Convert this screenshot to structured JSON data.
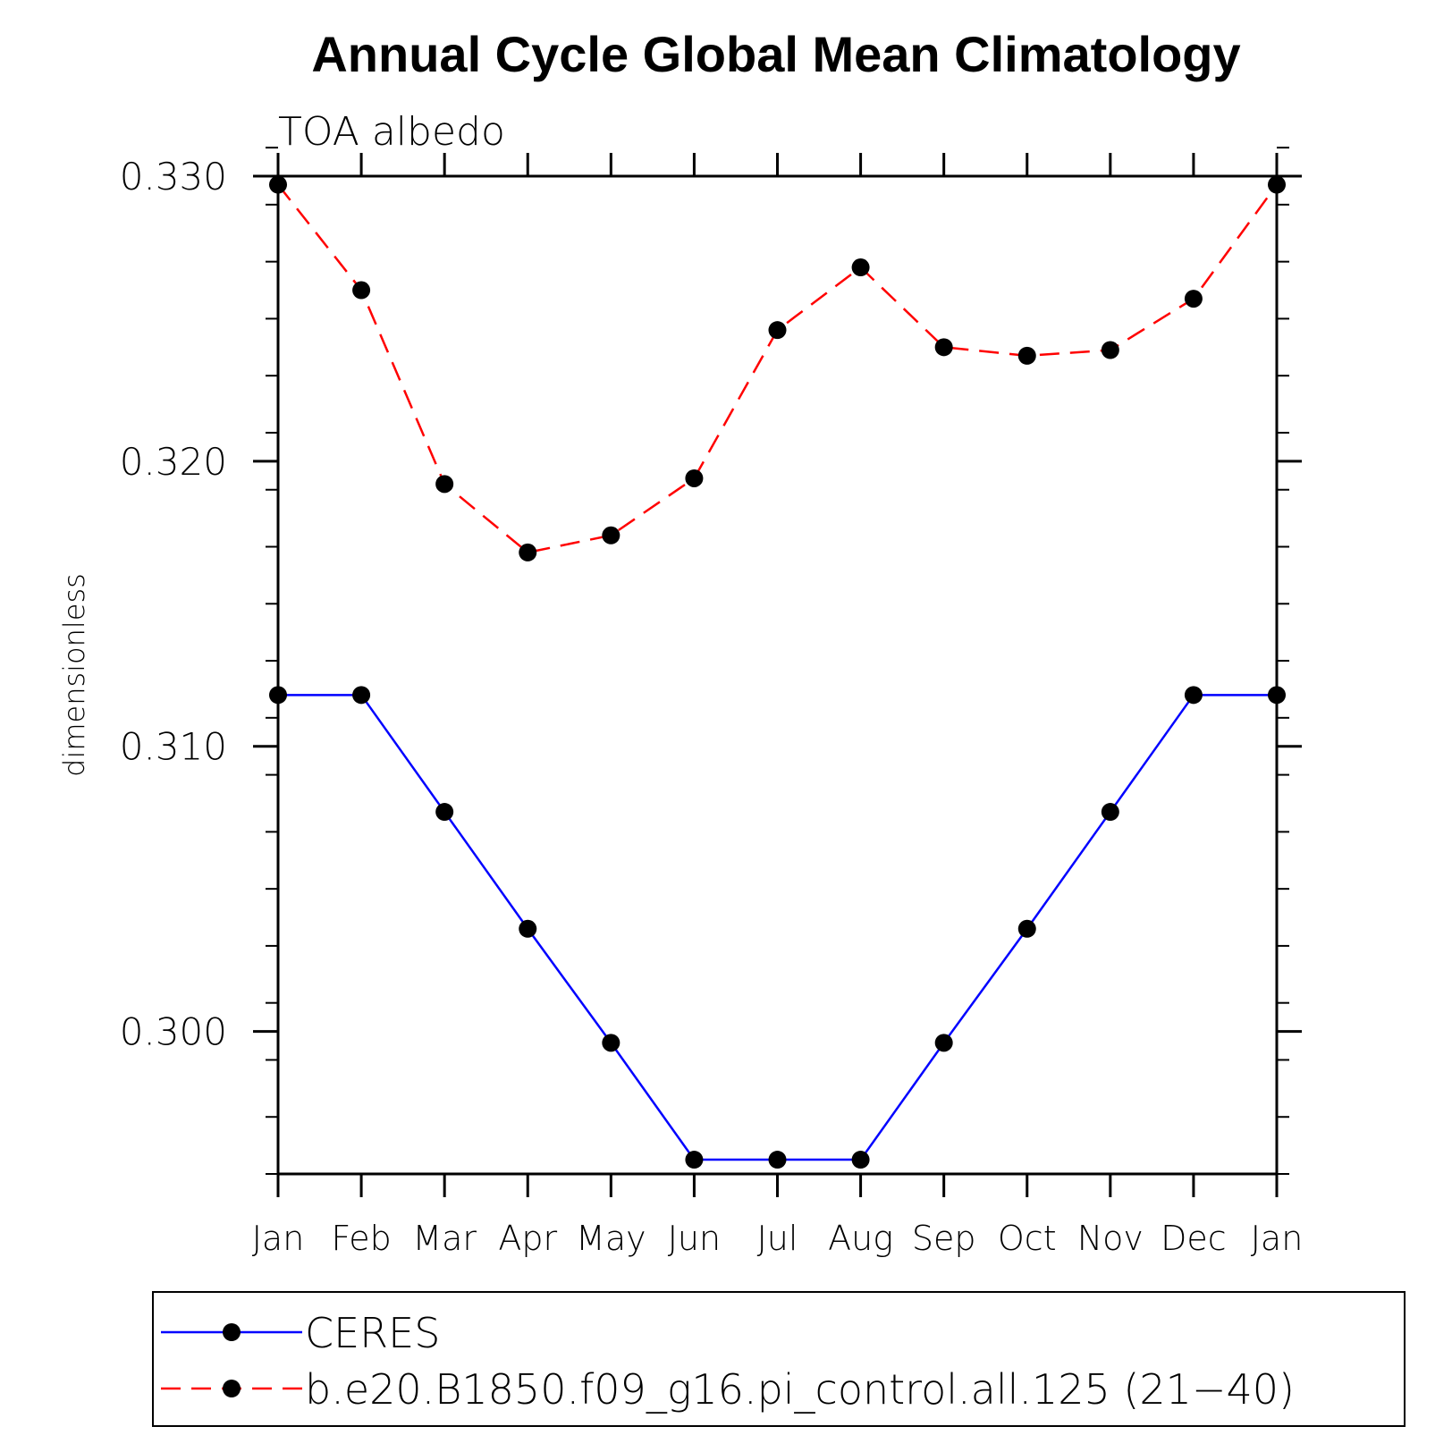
{
  "chart_data": {
    "type": "line",
    "title": "Annual Cycle Global Mean Climatology",
    "subtitle": "TOA  albedo",
    "xlabel": "",
    "ylabel": "dimensionless",
    "categories": [
      "Jan",
      "Feb",
      "Mar",
      "Apr",
      "May",
      "Jun",
      "Jul",
      "Aug",
      "Sep",
      "Oct",
      "Nov",
      "Dec",
      "Jan"
    ],
    "ylim": [
      0.295,
      0.33
    ],
    "yticks": [
      0.3,
      0.31,
      0.32,
      0.33
    ],
    "ytick_labels": [
      "0.300",
      "0.310",
      "0.320",
      "0.330"
    ],
    "y_minor_step": 0.002,
    "grid": false,
    "legend_position": "bottom",
    "series": [
      {
        "name": "CERES",
        "color": "#0000ff",
        "dash": "solid",
        "marker": "filled-circle",
        "values": [
          0.3118,
          0.3118,
          0.3077,
          0.3036,
          0.2996,
          0.2955,
          0.2955,
          0.2955,
          0.2996,
          0.3036,
          0.3077,
          0.3118,
          0.3118
        ]
      },
      {
        "name": "b.e20.B1850.f09_g16.pi_control.all.125 (21−40)",
        "color": "#ff0000",
        "dash": "dashed",
        "marker": "filled-circle",
        "values": [
          0.3297,
          0.326,
          0.3192,
          0.3168,
          0.3174,
          0.3194,
          0.3246,
          0.3268,
          0.324,
          0.3237,
          0.3239,
          0.3257,
          0.3297
        ]
      }
    ]
  }
}
